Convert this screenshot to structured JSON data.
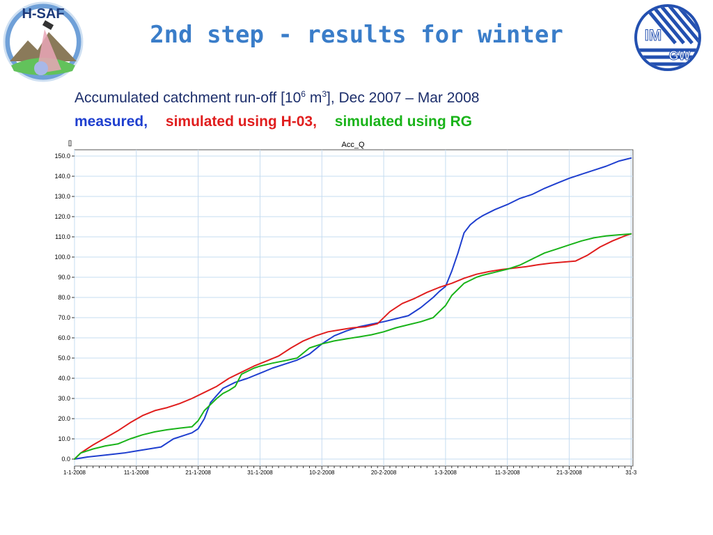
{
  "slide": {
    "title": "2nd step - results for winter",
    "subtitle_prefix": "Accumulated catchment run-off [10",
    "subtitle_exp1": "6",
    "subtitle_mid": " m",
    "subtitle_exp2": "3",
    "subtitle_suffix": "], Dec 2007 – Mar 2008",
    "legend": [
      {
        "label": "measured,",
        "color": "#1f3fcf"
      },
      {
        "label": "simulated using H-03,",
        "color": "#e01e1e"
      },
      {
        "label": "simulated using RG",
        "color": "#19b319"
      }
    ],
    "logo_left_text": "H-SAF",
    "logo_right_text_1": "IM",
    "logo_right_text_2": "GW"
  },
  "chart_data": {
    "type": "line",
    "title": "Acc_Q",
    "ylabel": "[]",
    "xlabel": "",
    "ylim": [
      0,
      150
    ],
    "yticks": [
      0,
      10,
      20,
      30,
      40,
      50,
      60,
      70,
      80,
      90,
      100,
      110,
      120,
      130,
      140,
      150
    ],
    "ytick_labels": [
      "0.0",
      "10.0",
      "20.0",
      "30.0",
      "40.0",
      "50.0",
      "60.0",
      "70.0",
      "80.0",
      "90.0",
      "100.0",
      "110.0",
      "120.0",
      "130.0",
      "140.0",
      "150.0"
    ],
    "xticks": [
      0,
      10,
      20,
      30,
      40,
      50,
      60,
      70,
      80,
      90
    ],
    "xtick_labels": [
      "1-1-2008",
      "11-1-2008",
      "21-1-2008",
      "31-1-2008",
      "10-2-2008",
      "20-2-2008",
      "1-3-2008",
      "11-3-2008",
      "21-3-2008",
      "31-3"
    ],
    "grid": true,
    "series": [
      {
        "name": "measured",
        "color": "#1f3fcf",
        "x": [
          0,
          2,
          5,
          8,
          10,
          12,
          14,
          16,
          18,
          19,
          20,
          21,
          22,
          24,
          26,
          28,
          30,
          32,
          34,
          36,
          37,
          38,
          40,
          42,
          44,
          46,
          48,
          50,
          52,
          54,
          56,
          58,
          59,
          60,
          61,
          62,
          63,
          64,
          65,
          66,
          67,
          68,
          70,
          72,
          74,
          76,
          78,
          80,
          82,
          84,
          86,
          88,
          90
        ],
        "y": [
          0,
          1,
          2,
          3,
          4,
          5,
          6,
          10,
          12,
          13,
          15,
          20,
          28,
          35,
          38,
          40,
          42.5,
          45,
          47,
          49,
          50.5,
          52,
          57,
          61,
          63.5,
          65.5,
          66.8,
          68,
          69.5,
          71,
          75,
          80,
          83,
          85.5,
          93,
          102,
          112,
          116,
          118.5,
          120.5,
          122,
          123.5,
          126,
          129,
          131,
          134,
          136.5,
          139,
          141,
          143,
          145,
          147.5,
          149
        ]
      },
      {
        "name": "simulated using H-03",
        "color": "#e01e1e",
        "x": [
          0,
          1,
          3,
          5,
          7,
          9,
          11,
          13,
          15,
          17,
          19,
          21,
          23,
          25,
          27,
          29,
          31,
          33,
          35,
          37,
          39,
          41,
          43,
          45,
          47,
          49,
          51,
          53,
          55,
          57,
          59,
          61,
          63,
          65,
          67,
          69,
          71,
          73,
          75,
          77,
          79,
          81,
          83,
          85,
          87,
          89,
          90
        ],
        "y": [
          0,
          3,
          7,
          10.5,
          14,
          18,
          21.5,
          24,
          25.5,
          27.5,
          30,
          33,
          36,
          40,
          43,
          46,
          48.5,
          51,
          55,
          58.5,
          61,
          63,
          64,
          65,
          65.5,
          67,
          73,
          77,
          79.5,
          82.5,
          85,
          87,
          89.5,
          91.5,
          92.8,
          93.8,
          94.5,
          95.2,
          96.2,
          97,
          97.5,
          98,
          101,
          105,
          108,
          110.5,
          111.5
        ]
      },
      {
        "name": "simulated using RG",
        "color": "#19b319",
        "x": [
          0,
          1,
          3,
          5,
          7,
          9,
          11,
          13,
          15,
          17,
          19,
          20,
          21,
          22,
          23,
          24,
          25,
          26,
          27,
          28,
          29,
          30,
          32,
          34,
          36,
          38,
          40,
          42,
          44,
          46,
          48,
          50,
          52,
          54,
          56,
          58,
          60,
          61,
          62,
          63,
          64,
          65,
          66,
          68,
          70,
          72,
          74,
          76,
          78,
          80,
          82,
          84,
          86,
          88,
          90
        ],
        "y": [
          0,
          3,
          5,
          6.5,
          7.5,
          10,
          12,
          13.5,
          14.5,
          15.3,
          16,
          19,
          24,
          27,
          30,
          32.5,
          34,
          36,
          42,
          43.5,
          45,
          46,
          47.5,
          48.7,
          50,
          55,
          57,
          58.5,
          59.5,
          60.5,
          61.5,
          63,
          65,
          66.5,
          68,
          70,
          76,
          81,
          84,
          87,
          88.5,
          90,
          91,
          92.5,
          94,
          96,
          99,
          102,
          104,
          106,
          108,
          109.5,
          110.5,
          111,
          111.5
        ]
      }
    ]
  }
}
